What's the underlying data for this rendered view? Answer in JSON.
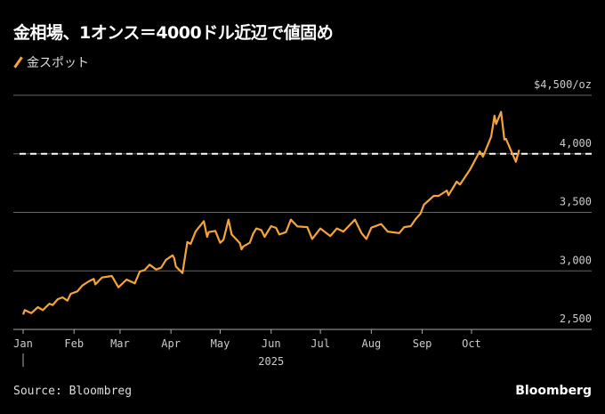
{
  "chart_data": {
    "type": "line",
    "title": "金相場、1オンス＝4000ドル近辺で値固め",
    "legend": [
      "金スポット"
    ],
    "legend_placement": "top-left",
    "ylabel_unit": "$4,500/oz",
    "ylim": [
      2500,
      4500
    ],
    "yticks": [
      {
        "value": 4500,
        "label": "$4,500/oz"
      },
      {
        "value": 4000,
        "label": "4,000"
      },
      {
        "value": 3500,
        "label": "3,500"
      },
      {
        "value": 3000,
        "label": "3,000"
      },
      {
        "value": 2500,
        "label": "2,500"
      }
    ],
    "xlim": [
      -6,
      346
    ],
    "xticks": [
      {
        "day": 0,
        "label": "Jan"
      },
      {
        "day": 31,
        "label": "Feb"
      },
      {
        "day": 59,
        "label": "Mar"
      },
      {
        "day": 90,
        "label": "Apr"
      },
      {
        "day": 120,
        "label": "May"
      },
      {
        "day": 151,
        "label": "Jun"
      },
      {
        "day": 181,
        "label": "Jul"
      },
      {
        "day": 212,
        "label": "Aug"
      },
      {
        "day": 243,
        "label": "Sep"
      },
      {
        "day": 273,
        "label": "Oct"
      }
    ],
    "year_label": "2025",
    "reference_line": {
      "value": 4000,
      "style": "dashed",
      "color": "#ffffff"
    },
    "grid": true,
    "series": [
      {
        "name": "金スポット",
        "color": "#f5a33b",
        "x_unit": "day of 2025",
        "points": [
          [
            0,
            2627
          ],
          [
            1,
            2665
          ],
          [
            5,
            2639
          ],
          [
            9,
            2690
          ],
          [
            12,
            2665
          ],
          [
            16,
            2720
          ],
          [
            18,
            2708
          ],
          [
            21,
            2758
          ],
          [
            24,
            2774
          ],
          [
            27,
            2746
          ],
          [
            29,
            2804
          ],
          [
            33,
            2825
          ],
          [
            36,
            2875
          ],
          [
            40,
            2911
          ],
          [
            43,
            2931
          ],
          [
            44,
            2885
          ],
          [
            48,
            2943
          ],
          [
            54,
            2956
          ],
          [
            58,
            2860
          ],
          [
            63,
            2926
          ],
          [
            68,
            2893
          ],
          [
            71,
            2994
          ],
          [
            74,
            3007
          ],
          [
            77,
            3053
          ],
          [
            81,
            3012
          ],
          [
            84,
            3027
          ],
          [
            87,
            3095
          ],
          [
            91,
            3133
          ],
          [
            92,
            3108
          ],
          [
            93,
            3038
          ],
          [
            97,
            2981
          ],
          [
            100,
            3247
          ],
          [
            102,
            3230
          ],
          [
            105,
            3336
          ],
          [
            110,
            3425
          ],
          [
            112,
            3291
          ],
          [
            113,
            3331
          ],
          [
            117,
            3342
          ],
          [
            120,
            3240
          ],
          [
            122,
            3266
          ],
          [
            125,
            3438
          ],
          [
            127,
            3311
          ],
          [
            132,
            3235
          ],
          [
            133,
            3184
          ],
          [
            134,
            3209
          ],
          [
            138,
            3240
          ],
          [
            140,
            3316
          ],
          [
            142,
            3362
          ],
          [
            145,
            3349
          ],
          [
            147,
            3291
          ],
          [
            151,
            3382
          ],
          [
            154,
            3367
          ],
          [
            156,
            3311
          ],
          [
            160,
            3331
          ],
          [
            163,
            3438
          ],
          [
            167,
            3380
          ],
          [
            173,
            3374
          ],
          [
            176,
            3273
          ],
          [
            181,
            3362
          ],
          [
            187,
            3298
          ],
          [
            191,
            3362
          ],
          [
            195,
            3336
          ],
          [
            202,
            3438
          ],
          [
            206,
            3323
          ],
          [
            209,
            3273
          ],
          [
            212,
            3369
          ],
          [
            218,
            3400
          ],
          [
            222,
            3336
          ],
          [
            229,
            3323
          ],
          [
            232,
            3374
          ],
          [
            236,
            3382
          ],
          [
            239,
            3443
          ],
          [
            242,
            3489
          ],
          [
            244,
            3565
          ],
          [
            250,
            3641
          ],
          [
            253,
            3641
          ],
          [
            258,
            3686
          ],
          [
            259,
            3646
          ],
          [
            264,
            3762
          ],
          [
            266,
            3737
          ],
          [
            272,
            3863
          ],
          [
            278,
            4021
          ],
          [
            280,
            3975
          ],
          [
            285,
            4148
          ],
          [
            287,
            4325
          ],
          [
            288,
            4254
          ],
          [
            291,
            4358
          ],
          [
            293,
            4122
          ],
          [
            294,
            4127
          ],
          [
            300,
            3932
          ],
          [
            302,
            4034
          ]
        ]
      }
    ]
  },
  "footer": {
    "source": "Source: Bloombreg",
    "brand": "Bloomberg"
  }
}
